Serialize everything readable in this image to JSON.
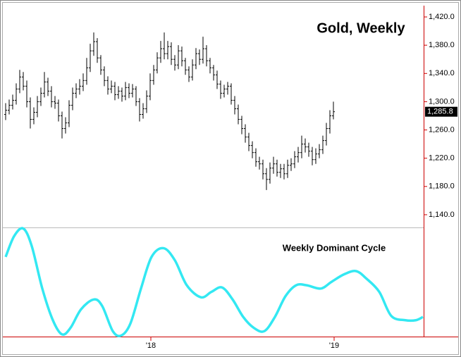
{
  "chart_data": [
    {
      "type": "ohlc",
      "title": "Gold, Weekly",
      "color": "#000000",
      "axis_color": "#cc0000",
      "x": [
        0,
        1,
        2,
        3,
        4,
        5,
        6,
        7,
        8,
        9,
        10,
        11,
        12,
        13,
        14,
        15,
        16,
        17,
        18,
        19,
        20,
        21,
        22,
        23,
        24,
        25,
        26,
        27,
        28,
        29,
        30,
        31,
        32,
        33,
        34,
        35,
        36,
        37,
        38,
        39,
        40,
        41,
        42,
        43,
        44,
        45,
        46,
        47,
        48,
        49,
        50,
        51,
        52,
        53,
        54,
        55,
        56,
        57,
        58,
        59,
        60,
        61,
        62,
        63,
        64,
        65,
        66,
        67,
        68,
        69,
        70,
        71,
        72,
        73,
        74,
        75,
        76,
        77,
        78,
        79,
        80,
        81,
        82,
        83,
        84,
        85,
        86,
        87,
        88,
        89,
        90,
        91,
        92,
        93
      ],
      "open": [
        1282,
        1288,
        1295,
        1302,
        1318,
        1335,
        1322,
        1300,
        1275,
        1285,
        1300,
        1312,
        1328,
        1315,
        1300,
        1298,
        1280,
        1262,
        1270,
        1295,
        1312,
        1318,
        1322,
        1330,
        1348,
        1372,
        1385,
        1362,
        1345,
        1330,
        1318,
        1322,
        1310,
        1315,
        1308,
        1320,
        1312,
        1318,
        1300,
        1282,
        1290,
        1308,
        1330,
        1345,
        1362,
        1375,
        1368,
        1378,
        1360,
        1352,
        1372,
        1358,
        1345,
        1335,
        1352,
        1368,
        1360,
        1375,
        1358,
        1348,
        1338,
        1325,
        1312,
        1318,
        1322,
        1302,
        1290,
        1275,
        1262,
        1250,
        1238,
        1228,
        1215,
        1212,
        1198,
        1190,
        1206,
        1212,
        1200,
        1205,
        1198,
        1210,
        1212,
        1222,
        1228,
        1240,
        1236,
        1230,
        1218,
        1226,
        1232,
        1245,
        1262,
        1280
      ],
      "high": [
        1298,
        1303,
        1310,
        1326,
        1345,
        1342,
        1330,
        1306,
        1292,
        1308,
        1320,
        1342,
        1334,
        1322,
        1308,
        1303,
        1286,
        1278,
        1302,
        1320,
        1326,
        1332,
        1340,
        1362,
        1382,
        1398,
        1390,
        1366,
        1350,
        1336,
        1330,
        1328,
        1322,
        1320,
        1328,
        1326,
        1325,
        1322,
        1305,
        1298,
        1316,
        1340,
        1352,
        1370,
        1386,
        1398,
        1386,
        1384,
        1366,
        1380,
        1378,
        1362,
        1350,
        1360,
        1376,
        1374,
        1392,
        1380,
        1362,
        1352,
        1344,
        1330,
        1324,
        1328,
        1326,
        1308,
        1296,
        1280,
        1268,
        1256,
        1244,
        1234,
        1222,
        1218,
        1206,
        1214,
        1222,
        1218,
        1212,
        1212,
        1218,
        1220,
        1230,
        1236,
        1252,
        1248,
        1242,
        1236,
        1234,
        1240,
        1252,
        1270,
        1288,
        1300
      ],
      "low": [
        1274,
        1282,
        1289,
        1296,
        1312,
        1316,
        1292,
        1262,
        1268,
        1278,
        1294,
        1306,
        1308,
        1292,
        1290,
        1272,
        1248,
        1255,
        1264,
        1288,
        1305,
        1310,
        1315,
        1324,
        1342,
        1365,
        1355,
        1338,
        1322,
        1310,
        1312,
        1302,
        1304,
        1300,
        1302,
        1305,
        1306,
        1294,
        1272,
        1276,
        1284,
        1302,
        1324,
        1340,
        1355,
        1360,
        1360,
        1352,
        1344,
        1346,
        1350,
        1338,
        1328,
        1330,
        1346,
        1352,
        1354,
        1350,
        1340,
        1330,
        1318,
        1304,
        1306,
        1310,
        1296,
        1282,
        1268,
        1254,
        1242,
        1230,
        1220,
        1208,
        1204,
        1190,
        1175,
        1184,
        1198,
        1194,
        1192,
        1190,
        1192,
        1202,
        1206,
        1214,
        1220,
        1228,
        1222,
        1210,
        1212,
        1220,
        1226,
        1238,
        1255,
        1275
      ],
      "close": [
        1288,
        1295,
        1302,
        1318,
        1335,
        1322,
        1300,
        1275,
        1285,
        1300,
        1312,
        1328,
        1315,
        1300,
        1298,
        1280,
        1262,
        1270,
        1295,
        1312,
        1318,
        1322,
        1330,
        1348,
        1372,
        1385,
        1362,
        1345,
        1330,
        1318,
        1322,
        1310,
        1315,
        1308,
        1320,
        1312,
        1318,
        1300,
        1282,
        1290,
        1308,
        1330,
        1345,
        1362,
        1375,
        1368,
        1378,
        1360,
        1352,
        1372,
        1358,
        1345,
        1335,
        1352,
        1368,
        1360,
        1375,
        1358,
        1348,
        1338,
        1325,
        1312,
        1318,
        1322,
        1302,
        1290,
        1275,
        1262,
        1250,
        1238,
        1228,
        1215,
        1212,
        1198,
        1190,
        1206,
        1212,
        1200,
        1205,
        1198,
        1210,
        1212,
        1222,
        1228,
        1240,
        1236,
        1230,
        1218,
        1226,
        1232,
        1245,
        1262,
        1280,
        1285.8
      ],
      "last_value_label": "1,285.8",
      "xlim": [
        -0.8,
        118.6
      ],
      "xticks": [
        {
          "value": 41.2,
          "label": "'18"
        },
        {
          "value": 93.2,
          "label": "'19"
        }
      ],
      "ylim": [
        1122,
        1436
      ],
      "yticks": [
        {
          "value": 1140,
          "label": "1,140.0"
        },
        {
          "value": 1180,
          "label": "1,180.0"
        },
        {
          "value": 1220,
          "label": "1,220.0"
        },
        {
          "value": 1260,
          "label": "1,260.0"
        },
        {
          "value": 1300,
          "label": "1,300.0"
        },
        {
          "value": 1340,
          "label": "1,340.0"
        },
        {
          "value": 1380,
          "label": "1,380.0"
        },
        {
          "value": 1420,
          "label": "1,420.0"
        }
      ]
    },
    {
      "type": "line",
      "title": "Weekly Dominant Cycle",
      "color": "#33e8f2",
      "x": [
        0,
        2.4,
        5,
        7.4,
        10.4,
        13.4,
        16,
        18.4,
        21.4,
        25,
        27.4,
        30.4,
        32.8,
        35.4,
        38.4,
        41.4,
        44.8,
        48,
        51.4,
        55.4,
        58.4,
        61.4,
        64.4,
        67.4,
        70.4,
        73.4,
        76.4,
        79.4,
        82.4,
        85.4,
        89.4,
        92.4,
        96,
        99.4,
        102.4,
        106,
        109.4,
        113.4,
        116.4,
        118.4
      ],
      "values": [
        73,
        92,
        99,
        83,
        44,
        15,
        2,
        8,
        25,
        34,
        28,
        5,
        1,
        12,
        44,
        73,
        81,
        70,
        47,
        36,
        41,
        45,
        34,
        18,
        8,
        5,
        18,
        37,
        47,
        47,
        44,
        50,
        57,
        60,
        53,
        41,
        19,
        15,
        15,
        18
      ],
      "xlim": [
        -0.8,
        118.6
      ],
      "ylim": [
        0,
        100
      ]
    }
  ]
}
